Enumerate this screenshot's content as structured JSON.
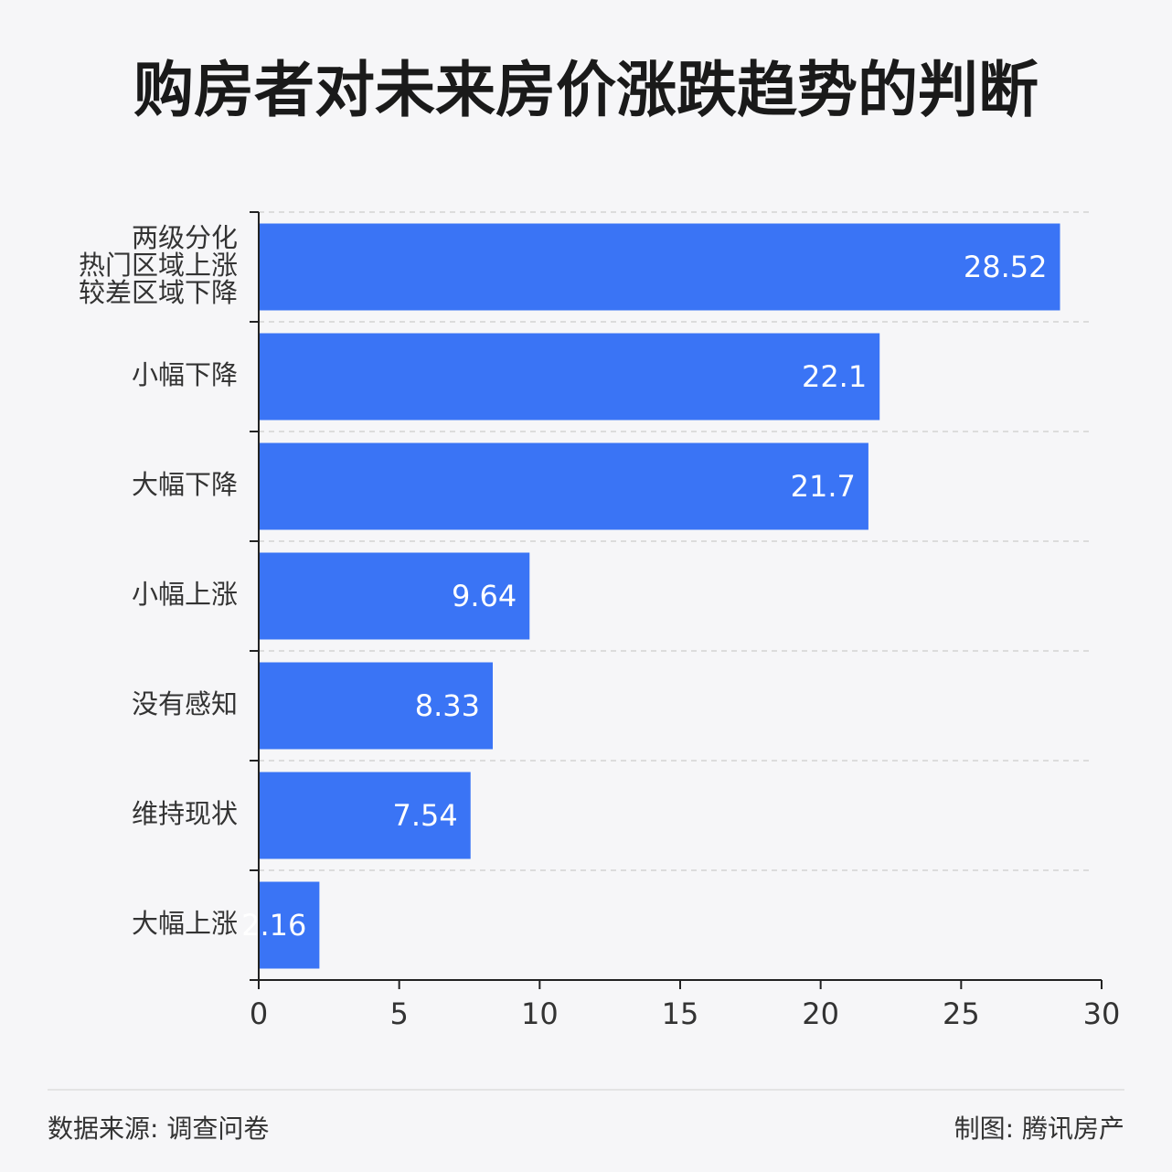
{
  "chart_data": {
    "type": "barh",
    "title": "购房者对未来房价涨跌趋势的判断",
    "categories": [
      "两级分化\n热门区域上涨\n较差区域下降",
      "小幅下降",
      "大幅下降",
      "小幅上涨",
      "没有感知",
      "维持现状",
      "大幅上涨"
    ],
    "values": [
      28.52,
      22.1,
      21.7,
      9.64,
      8.33,
      7.54,
      2.16
    ],
    "color": "#3a74f5",
    "xlim": [
      0,
      30
    ],
    "xticks": [
      0,
      5,
      10,
      15,
      20,
      25,
      30
    ],
    "source": "数据来源: 调查问卷",
    "credit": "制图: 腾讯房产"
  }
}
